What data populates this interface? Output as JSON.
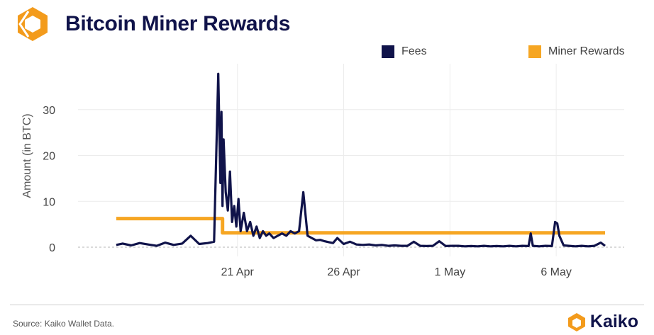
{
  "header": {
    "title": "Bitcoin Miner Rewards",
    "logo_icon": "kaiko-logo-icon"
  },
  "footer": {
    "source": "Source: Kaiko Wallet Data.",
    "brand": "Kaiko",
    "brand_icon": "kaiko-logo-icon"
  },
  "colors": {
    "fees": "#10134a",
    "rewards": "#f6a623",
    "title": "#10134a",
    "brand_orange": "#f39b1c"
  },
  "chart_data": {
    "type": "line",
    "title": "Bitcoin Miner Rewards",
    "ylabel": "Amount (in BTC)",
    "xlabel": "",
    "ylim": [
      -2,
      40
    ],
    "yticks": [
      0,
      10,
      20,
      30
    ],
    "xticks": [
      {
        "label": "21 Apr",
        "day": 21
      },
      {
        "label": "26 Apr",
        "day": 26
      },
      {
        "label": "1 May",
        "day": 31
      },
      {
        "label": "6 May",
        "day": 36
      }
    ],
    "x_unit": "day (April 1 = 1; 1 May = 31)",
    "grid": true,
    "legend": "top",
    "series": [
      {
        "name": "Fees",
        "x": [
          15.3,
          15.6,
          16.0,
          16.4,
          16.8,
          17.2,
          17.6,
          18.0,
          18.4,
          18.8,
          19.2,
          19.6,
          19.9,
          20.1,
          20.2,
          20.25,
          20.3,
          20.35,
          20.45,
          20.55,
          20.65,
          20.75,
          20.85,
          20.95,
          21.05,
          21.15,
          21.3,
          21.45,
          21.6,
          21.75,
          21.9,
          22.05,
          22.2,
          22.35,
          22.5,
          22.7,
          22.9,
          23.1,
          23.3,
          23.5,
          23.7,
          23.9,
          24.1,
          24.3,
          24.5,
          24.7,
          24.9,
          25.1,
          25.3,
          25.5,
          25.7,
          26.0,
          26.3,
          26.6,
          26.9,
          27.2,
          27.5,
          27.8,
          28.1,
          28.4,
          28.7,
          29.0,
          29.3,
          29.6,
          29.9,
          30.2,
          30.5,
          30.8,
          31.1,
          31.4,
          31.7,
          32.0,
          32.3,
          32.6,
          32.9,
          33.2,
          33.5,
          33.8,
          34.1,
          34.4,
          34.7,
          34.8,
          34.9,
          35.2,
          35.5,
          35.8,
          35.95,
          36.05,
          36.15,
          36.35,
          36.6,
          36.9,
          37.2,
          37.5,
          37.8,
          38.1,
          38.3
        ],
        "values": [
          0.5,
          0.8,
          0.4,
          0.9,
          0.6,
          0.3,
          1.0,
          0.5,
          0.8,
          2.5,
          0.7,
          0.9,
          1.2,
          37.8,
          14.0,
          29.5,
          9.0,
          23.5,
          12.0,
          8.0,
          16.5,
          5.5,
          9.0,
          4.5,
          10.5,
          3.5,
          7.5,
          3.5,
          5.5,
          2.5,
          4.5,
          2.0,
          3.5,
          2.5,
          3.0,
          2.0,
          2.5,
          3.0,
          2.5,
          3.5,
          3.0,
          3.5,
          12.0,
          2.5,
          2.0,
          1.5,
          1.6,
          1.3,
          1.1,
          0.9,
          2.0,
          0.7,
          1.2,
          0.6,
          0.5,
          0.6,
          0.4,
          0.5,
          0.3,
          0.4,
          0.3,
          0.3,
          1.2,
          0.3,
          0.25,
          0.3,
          1.3,
          0.25,
          0.3,
          0.3,
          0.2,
          0.25,
          0.2,
          0.3,
          0.2,
          0.25,
          0.2,
          0.3,
          0.2,
          0.3,
          0.25,
          3.0,
          0.3,
          0.2,
          0.3,
          0.25,
          5.5,
          5.2,
          2.5,
          0.4,
          0.3,
          0.2,
          0.3,
          0.2,
          0.3,
          1.0,
          0.3
        ]
      },
      {
        "name": "Miner Rewards",
        "x": [
          15.3,
          20.3,
          20.3,
          38.3
        ],
        "values": [
          6.25,
          6.25,
          3.125,
          3.125
        ]
      }
    ]
  }
}
